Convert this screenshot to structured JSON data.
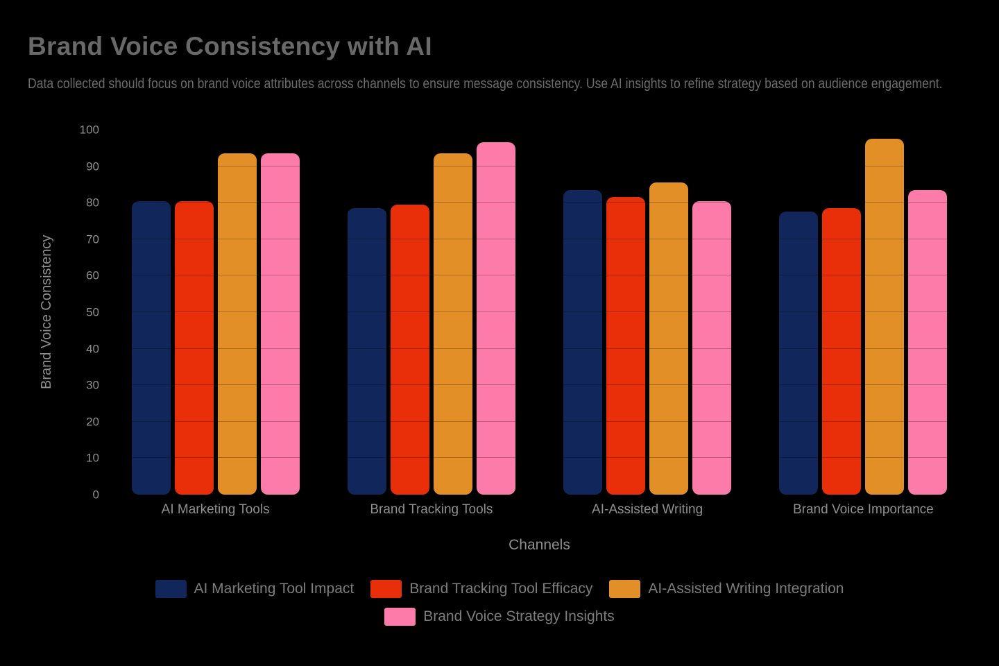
{
  "header": {
    "title": "Brand Voice Consistency with AI",
    "subtitle": "Data collected should focus on brand voice attributes across channels to ensure message consistency. Use AI insights to refine strategy based on audience engagement."
  },
  "chart_data": {
    "type": "bar",
    "title": "Brand Voice Consistency with AI",
    "xlabel": "Channels",
    "ylabel": "Brand Voice Consistency",
    "ylim": [
      0,
      100
    ],
    "yticks": [
      0,
      10,
      20,
      30,
      40,
      50,
      60,
      70,
      80,
      90,
      100
    ],
    "grid": true,
    "legend_position": "bottom",
    "legend_rows": [
      3,
      1
    ],
    "bar_corner_radius": 10,
    "categories": [
      "AI Marketing Tools",
      "Brand Tracking Tools",
      "AI-Assisted Writing",
      "Brand Voice Importance"
    ],
    "series": [
      {
        "name": "AI Marketing Tool Impact",
        "color": "#11265A",
        "values": [
          80.5,
          78.5,
          83.5,
          77.5
        ]
      },
      {
        "name": "Brand Tracking Tool Efficacy",
        "color": "#E82F0A",
        "values": [
          80.5,
          79.5,
          81.5,
          78.5
        ]
      },
      {
        "name": "AI-Assisted Writing Integration",
        "color": "#E28F28",
        "values": [
          93.5,
          93.5,
          85.5,
          97.5
        ]
      },
      {
        "name": "Brand Voice Strategy Insights",
        "color": "#FC7BA8",
        "values": [
          93.5,
          96.5,
          80.5,
          83.5
        ]
      }
    ]
  },
  "colors": {
    "background": "#000000",
    "title_text": "#696969",
    "subtitle_text": "#6B6B6B",
    "axis_text": "#8F8F8F",
    "legend_text": "#7D7D7D",
    "gridline": "rgba(0,0,0,0.25)"
  }
}
